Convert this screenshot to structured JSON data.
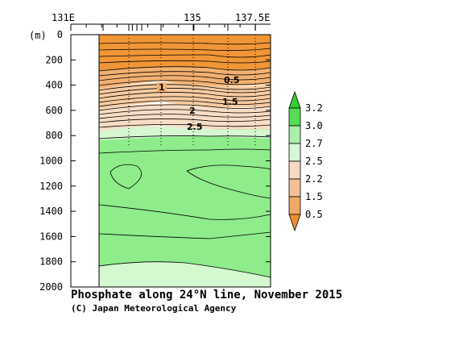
{
  "chart_data": {
    "type": "contour",
    "title": "Phosphate along 24°N line, November 2015",
    "credit": "(C) Japan Meteorological Agency",
    "x_ticks": [
      "131E",
      "135",
      "137.5E"
    ],
    "y_unit": "(m)",
    "y_ticks": [
      0,
      200,
      400,
      600,
      800,
      1000,
      1200,
      1400,
      1600,
      1800,
      2000
    ],
    "ylim": [
      0,
      2000
    ],
    "y_inverted": true,
    "contour_labels": [
      "0.5",
      "1",
      "1.5",
      "2",
      "2.5"
    ],
    "colorbar": {
      "labels": [
        "3.2",
        "3.0",
        "2.7",
        "2.5",
        "2.2",
        "1.5",
        "0.5"
      ],
      "colors": [
        "#33cc33",
        "#55dd55",
        "#aaeeaa",
        "#d8f5d8",
        "#f6dac6",
        "#f3c09a",
        "#f0a866",
        "#ee8e2e"
      ]
    },
    "colors": {
      "orange_dark": "#f09636",
      "orange_mid": "#f3b070",
      "orange_light": "#f7cba0",
      "peach": "#f8ddc6",
      "green_light": "#d7f6d2",
      "green_main": "#8eec8a",
      "green_pale": "#d4f8d0"
    }
  }
}
